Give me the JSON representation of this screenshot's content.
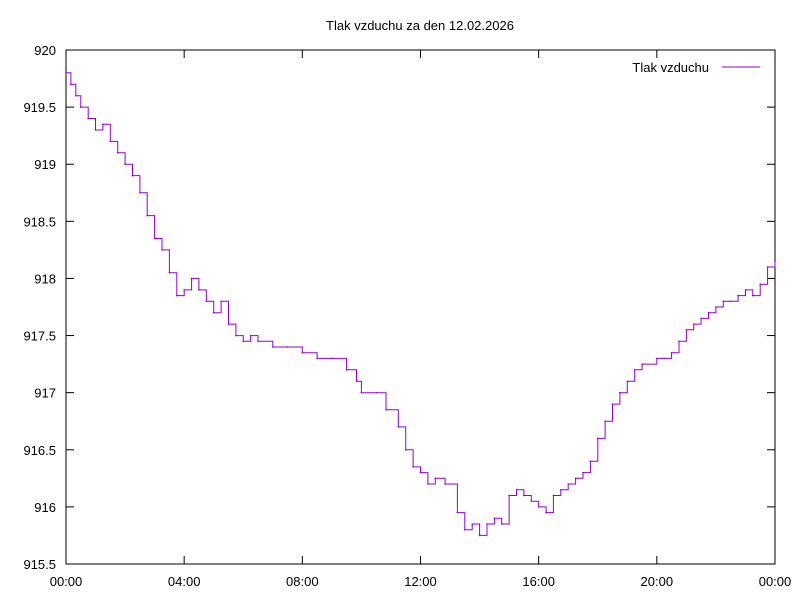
{
  "chart_data": {
    "type": "line",
    "title": "Tlak vzduchu za den 12.02.2026",
    "xlabel": "",
    "ylabel": "",
    "ylim": [
      915.5,
      920
    ],
    "xlim": [
      "00:00",
      "24:00"
    ],
    "y_ticks": [
      "915.5",
      "916",
      "916.5",
      "917",
      "917.5",
      "918",
      "918.5",
      "919",
      "919.5",
      "920"
    ],
    "x_ticks": [
      "00:00",
      "04:00",
      "08:00",
      "12:00",
      "16:00",
      "20:00",
      "00:00"
    ],
    "grid": false,
    "legend_position": "top-right",
    "series": [
      {
        "name": "Tlak vzduchu",
        "color": "#9400d3",
        "points": [
          [
            "00:00",
            919.8
          ],
          [
            "00:10",
            919.7
          ],
          [
            "00:20",
            919.6
          ],
          [
            "00:30",
            919.5
          ],
          [
            "00:45",
            919.4
          ],
          [
            "01:00",
            919.3
          ],
          [
            "01:15",
            919.35
          ],
          [
            "01:30",
            919.2
          ],
          [
            "01:45",
            919.1
          ],
          [
            "02:00",
            919.0
          ],
          [
            "02:15",
            918.9
          ],
          [
            "02:30",
            918.75
          ],
          [
            "02:45",
            918.55
          ],
          [
            "03:00",
            918.35
          ],
          [
            "03:15",
            918.25
          ],
          [
            "03:30",
            918.05
          ],
          [
            "03:45",
            917.85
          ],
          [
            "04:00",
            917.9
          ],
          [
            "04:15",
            918.0
          ],
          [
            "04:30",
            917.9
          ],
          [
            "04:45",
            917.8
          ],
          [
            "05:00",
            917.7
          ],
          [
            "05:15",
            917.8
          ],
          [
            "05:30",
            917.6
          ],
          [
            "05:45",
            917.5
          ],
          [
            "06:00",
            917.45
          ],
          [
            "06:15",
            917.5
          ],
          [
            "06:30",
            917.45
          ],
          [
            "07:00",
            917.4
          ],
          [
            "07:30",
            917.4
          ],
          [
            "08:00",
            917.35
          ],
          [
            "08:30",
            917.3
          ],
          [
            "09:00",
            917.3
          ],
          [
            "09:30",
            917.2
          ],
          [
            "09:50",
            917.1
          ],
          [
            "10:00",
            917.0
          ],
          [
            "10:30",
            917.0
          ],
          [
            "10:50",
            916.85
          ],
          [
            "11:15",
            916.7
          ],
          [
            "11:30",
            916.5
          ],
          [
            "11:45",
            916.35
          ],
          [
            "12:00",
            916.3
          ],
          [
            "12:15",
            916.2
          ],
          [
            "12:30",
            916.25
          ],
          [
            "12:50",
            916.2
          ],
          [
            "13:15",
            915.95
          ],
          [
            "13:30",
            915.8
          ],
          [
            "13:45",
            915.85
          ],
          [
            "14:00",
            915.75
          ],
          [
            "14:15",
            915.85
          ],
          [
            "14:30",
            915.9
          ],
          [
            "14:45",
            915.85
          ],
          [
            "15:00",
            916.1
          ],
          [
            "15:15",
            916.15
          ],
          [
            "15:30",
            916.1
          ],
          [
            "15:45",
            916.05
          ],
          [
            "16:00",
            916.0
          ],
          [
            "16:15",
            915.95
          ],
          [
            "16:30",
            916.1
          ],
          [
            "16:45",
            916.15
          ],
          [
            "17:00",
            916.2
          ],
          [
            "17:15",
            916.25
          ],
          [
            "17:30",
            916.3
          ],
          [
            "17:45",
            916.4
          ],
          [
            "18:00",
            916.6
          ],
          [
            "18:15",
            916.75
          ],
          [
            "18:30",
            916.9
          ],
          [
            "18:45",
            917.0
          ],
          [
            "19:00",
            917.1
          ],
          [
            "19:15",
            917.2
          ],
          [
            "19:30",
            917.25
          ],
          [
            "20:00",
            917.3
          ],
          [
            "20:15",
            917.3
          ],
          [
            "20:30",
            917.35
          ],
          [
            "20:45",
            917.45
          ],
          [
            "21:00",
            917.55
          ],
          [
            "21:15",
            917.6
          ],
          [
            "21:30",
            917.65
          ],
          [
            "21:45",
            917.7
          ],
          [
            "22:00",
            917.75
          ],
          [
            "22:15",
            917.8
          ],
          [
            "22:30",
            917.8
          ],
          [
            "22:45",
            917.85
          ],
          [
            "23:00",
            917.9
          ],
          [
            "23:15",
            917.85
          ],
          [
            "23:30",
            917.95
          ],
          [
            "23:45",
            918.1
          ],
          [
            "24:00",
            918.15
          ]
        ]
      }
    ]
  }
}
